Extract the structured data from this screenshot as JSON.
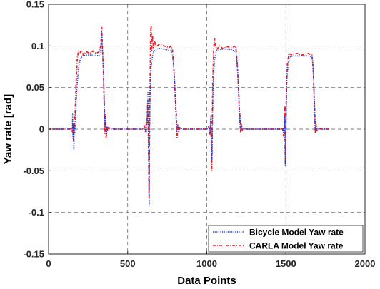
{
  "chart_data": {
    "type": "line",
    "xlabel": "Data Points",
    "ylabel": "Yaw rate [rad]",
    "xlim": [
      0,
      2000
    ],
    "ylim": [
      -0.15,
      0.15
    ],
    "x_ticks": [
      0,
      500,
      1000,
      1500,
      2000
    ],
    "y_ticks": [
      -0.15,
      -0.1,
      -0.05,
      0,
      0.05,
      0.1,
      0.15
    ],
    "x_tick_labels": [
      "0",
      "500",
      "1000",
      "1500",
      "2000"
    ],
    "y_tick_labels": [
      "-0.15",
      "-0.1",
      "-0.05",
      "0",
      "0.05",
      "0.1",
      "0.15"
    ],
    "grid": true,
    "legend_position": "bottom-right",
    "series": [
      {
        "name": "Bicycle Model Yaw rate",
        "color": "#1f3fd9",
        "style": "dotted",
        "points": [
          [
            0,
            0
          ],
          [
            140,
            0
          ],
          [
            150,
            0.002
          ],
          [
            152,
            0.018
          ],
          [
            154,
            -0.012
          ],
          [
            157,
            0.006
          ],
          [
            160,
            -0.025
          ],
          [
            163,
            0.006
          ],
          [
            166,
            -0.004
          ],
          [
            170,
            0.012
          ],
          [
            178,
            0.045
          ],
          [
            188,
            0.072
          ],
          [
            200,
            0.084
          ],
          [
            215,
            0.088
          ],
          [
            240,
            0.089
          ],
          [
            300,
            0.089
          ],
          [
            320,
            0.088
          ],
          [
            330,
            0.092
          ],
          [
            335,
            0.118
          ],
          [
            340,
            0.095
          ],
          [
            347,
            0.07
          ],
          [
            352,
            0.035
          ],
          [
            356,
            0.006
          ],
          [
            358,
            0.015
          ],
          [
            362,
            0.003
          ],
          [
            366,
            -0.006
          ],
          [
            372,
            0.002
          ],
          [
            390,
            0.001
          ],
          [
            420,
            0
          ],
          [
            600,
            0
          ],
          [
            610,
            0.002
          ],
          [
            618,
            -0.004
          ],
          [
            624,
            0.014
          ],
          [
            628,
            0.045
          ],
          [
            631,
            -0.01
          ],
          [
            634,
            -0.06
          ],
          [
            636,
            -0.092
          ],
          [
            638,
            -0.02
          ],
          [
            641,
            0.035
          ],
          [
            648,
            0.075
          ],
          [
            660,
            0.092
          ],
          [
            680,
            0.096
          ],
          [
            700,
            0.097
          ],
          [
            740,
            0.096
          ],
          [
            770,
            0.094
          ],
          [
            780,
            0.092
          ],
          [
            790,
            0.078
          ],
          [
            800,
            0.045
          ],
          [
            806,
            0.012
          ],
          [
            810,
            -0.004
          ],
          [
            816,
            0.003
          ],
          [
            825,
            0.001
          ],
          [
            850,
            0
          ],
          [
            1000,
            0
          ],
          [
            1015,
            0.002
          ],
          [
            1022,
            -0.005
          ],
          [
            1026,
            0.017
          ],
          [
            1030,
            -0.03
          ],
          [
            1033,
            -0.036
          ],
          [
            1036,
            0.006
          ],
          [
            1040,
            0.05
          ],
          [
            1048,
            0.082
          ],
          [
            1060,
            0.094
          ],
          [
            1090,
            0.096
          ],
          [
            1150,
            0.096
          ],
          [
            1185,
            0.093
          ],
          [
            1195,
            0.07
          ],
          [
            1203,
            0.04
          ],
          [
            1207,
            0.008
          ],
          [
            1211,
            0.015
          ],
          [
            1215,
            -0.002
          ],
          [
            1222,
            0.003
          ],
          [
            1232,
            0
          ],
          [
            1470,
            0
          ],
          [
            1482,
            0.001
          ],
          [
            1488,
            -0.005
          ],
          [
            1492,
            0.015
          ],
          [
            1496,
            -0.045
          ],
          [
            1500,
            0.004
          ],
          [
            1506,
            0.06
          ],
          [
            1515,
            0.08
          ],
          [
            1528,
            0.087
          ],
          [
            1550,
            0.088
          ],
          [
            1650,
            0.088
          ],
          [
            1668,
            0.086
          ],
          [
            1676,
            0.06
          ],
          [
            1681,
            0.02
          ],
          [
            1685,
            -0.002
          ],
          [
            1690,
            0.004
          ],
          [
            1700,
            0.001
          ],
          [
            1720,
            0
          ],
          [
            1770,
            0
          ]
        ]
      },
      {
        "name": "CARLA Model Yaw rate",
        "color": "#e8202a",
        "style": "dashdot",
        "points": [
          [
            0,
            0
          ],
          [
            130,
            0
          ],
          [
            145,
            0.001
          ],
          [
            150,
            -0.003
          ],
          [
            154,
            0.008
          ],
          [
            158,
            -0.015
          ],
          [
            162,
            0.003
          ],
          [
            168,
            0.02
          ],
          [
            175,
            0.06
          ],
          [
            182,
            0.086
          ],
          [
            190,
            0.094
          ],
          [
            200,
            0.092
          ],
          [
            210,
            0.095
          ],
          [
            220,
            0.089
          ],
          [
            240,
            0.093
          ],
          [
            260,
            0.091
          ],
          [
            280,
            0.094
          ],
          [
            300,
            0.091
          ],
          [
            320,
            0.093
          ],
          [
            330,
            0.1
          ],
          [
            336,
            0.122
          ],
          [
            340,
            0.1
          ],
          [
            346,
            0.075
          ],
          [
            350,
            0.04
          ],
          [
            353,
            0.02
          ],
          [
            355,
            -0.005
          ],
          [
            358,
            0.018
          ],
          [
            361,
            0.003
          ],
          [
            364,
            -0.012
          ],
          [
            368,
            0.004
          ],
          [
            372,
            -0.003
          ],
          [
            380,
            0.002
          ],
          [
            395,
            0
          ],
          [
            420,
            0
          ],
          [
            595,
            0
          ],
          [
            605,
            0.004
          ],
          [
            612,
            -0.003
          ],
          [
            617,
            0.006
          ],
          [
            622,
            0.006
          ],
          [
            626,
            0.03
          ],
          [
            630,
            0.006
          ],
          [
            633,
            -0.04
          ],
          [
            635,
            -0.082
          ],
          [
            638,
            0.01
          ],
          [
            642,
            0.06
          ],
          [
            645,
            0.112
          ],
          [
            648,
            0.125
          ],
          [
            652,
            0.095
          ],
          [
            657,
            0.112
          ],
          [
            663,
            0.098
          ],
          [
            670,
            0.106
          ],
          [
            680,
            0.099
          ],
          [
            700,
            0.102
          ],
          [
            730,
            0.1
          ],
          [
            760,
            0.098
          ],
          [
            775,
            0.1
          ],
          [
            783,
            0.095
          ],
          [
            790,
            0.08
          ],
          [
            798,
            0.05
          ],
          [
            804,
            0.025
          ],
          [
            808,
            0.017
          ],
          [
            812,
            -0.01
          ],
          [
            816,
            0.005
          ],
          [
            822,
            -0.003
          ],
          [
            830,
            0.002
          ],
          [
            850,
            0
          ],
          [
            1000,
            0
          ],
          [
            1012,
            0.003
          ],
          [
            1020,
            -0.006
          ],
          [
            1025,
            0.012
          ],
          [
            1028,
            -0.012
          ],
          [
            1031,
            -0.05
          ],
          [
            1034,
            0.002
          ],
          [
            1038,
            0.06
          ],
          [
            1044,
            0.098
          ],
          [
            1050,
            0.109
          ],
          [
            1055,
            0.1
          ],
          [
            1065,
            0.096
          ],
          [
            1080,
            0.1
          ],
          [
            1100,
            0.097
          ],
          [
            1130,
            0.099
          ],
          [
            1160,
            0.098
          ],
          [
            1183,
            0.1
          ],
          [
            1192,
            0.08
          ],
          [
            1200,
            0.05
          ],
          [
            1205,
            0.025
          ],
          [
            1209,
            0.017
          ],
          [
            1213,
            -0.004
          ],
          [
            1218,
            0.006
          ],
          [
            1225,
            -0.002
          ],
          [
            1235,
            0.001
          ],
          [
            1250,
            0
          ],
          [
            1465,
            0
          ],
          [
            1478,
            0.002
          ],
          [
            1485,
            -0.008
          ],
          [
            1490,
            0.007
          ],
          [
            1494,
            0.028
          ],
          [
            1497,
            -0.037
          ],
          [
            1500,
            0.002
          ],
          [
            1504,
            0.055
          ],
          [
            1510,
            0.08
          ],
          [
            1520,
            0.091
          ],
          [
            1540,
            0.089
          ],
          [
            1570,
            0.091
          ],
          [
            1600,
            0.089
          ],
          [
            1640,
            0.091
          ],
          [
            1665,
            0.089
          ],
          [
            1673,
            0.07
          ],
          [
            1679,
            0.035
          ],
          [
            1683,
            0.02
          ],
          [
            1686,
            -0.005
          ],
          [
            1690,
            0.006
          ],
          [
            1697,
            -0.002
          ],
          [
            1710,
            0.001
          ],
          [
            1730,
            0
          ],
          [
            1770,
            0
          ]
        ]
      }
    ]
  }
}
